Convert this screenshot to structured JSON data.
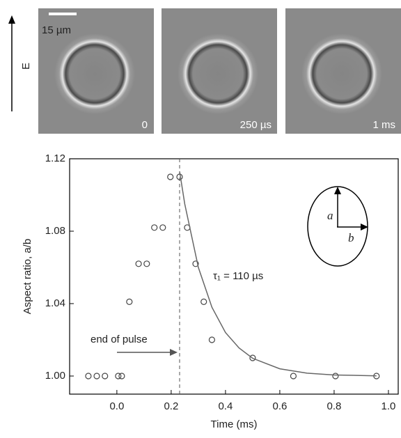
{
  "panel_text": {
    "field_label": "E",
    "scale_bar": "15 µm",
    "panels": [
      "0",
      "250 µs",
      "1 ms"
    ]
  },
  "chart_data": {
    "type": "scatter",
    "xlabel": "Time (ms)",
    "ylabel": "Aspect ratio, a/b",
    "annotations": {
      "pulse_text": "end of pulse",
      "tau_text": "τ₁ = 110 µs",
      "inset_a": "a",
      "inset_b": "b"
    },
    "pulse_end": 0.231,
    "xlim": [
      -0.174,
      1.036
    ],
    "xticks": [
      {
        "value": 0,
        "label": "0.0"
      },
      0.2,
      0.4,
      0.6,
      0.8,
      {
        "value": 1,
        "label": "1.0"
      }
    ],
    "ylim": [
      0.99,
      1.12
    ],
    "yticks": [
      {
        "value": 1,
        "label": "1.00"
      },
      {
        "value": 1.04,
        "label": "1.04"
      },
      {
        "value": 1.08,
        "label": "1.08"
      },
      {
        "value": 1.12,
        "label": "1.12"
      }
    ],
    "series": [
      {
        "mode": "markers",
        "color": "#444444",
        "x": [
          -0.105,
          -0.074,
          -0.044,
          0.005,
          0.018,
          0.046,
          0.08,
          0.11,
          0.138,
          0.169,
          0.197,
          0.231,
          0.259,
          0.29,
          0.32,
          0.35,
          0.5,
          0.65,
          0.805,
          0.956
        ],
        "values": [
          1.0,
          1.0,
          1.0,
          1.0,
          1.0,
          1.041,
          1.062,
          1.062,
          1.082,
          1.082,
          1.11,
          1.11,
          1.082,
          1.062,
          1.041,
          1.02,
          1.01,
          1.0,
          1.0,
          1.0
        ]
      },
      {
        "mode": "line",
        "color": "#666666",
        "x": [
          0.231,
          0.25,
          0.3,
          0.35,
          0.4,
          0.45,
          0.5,
          0.6,
          0.7,
          0.8,
          0.956
        ],
        "values": [
          1.113,
          1.095,
          1.06,
          1.038,
          1.024,
          1.0155,
          1.0098,
          1.004,
          1.0016,
          1.0006,
          1.0001
        ]
      }
    ]
  }
}
